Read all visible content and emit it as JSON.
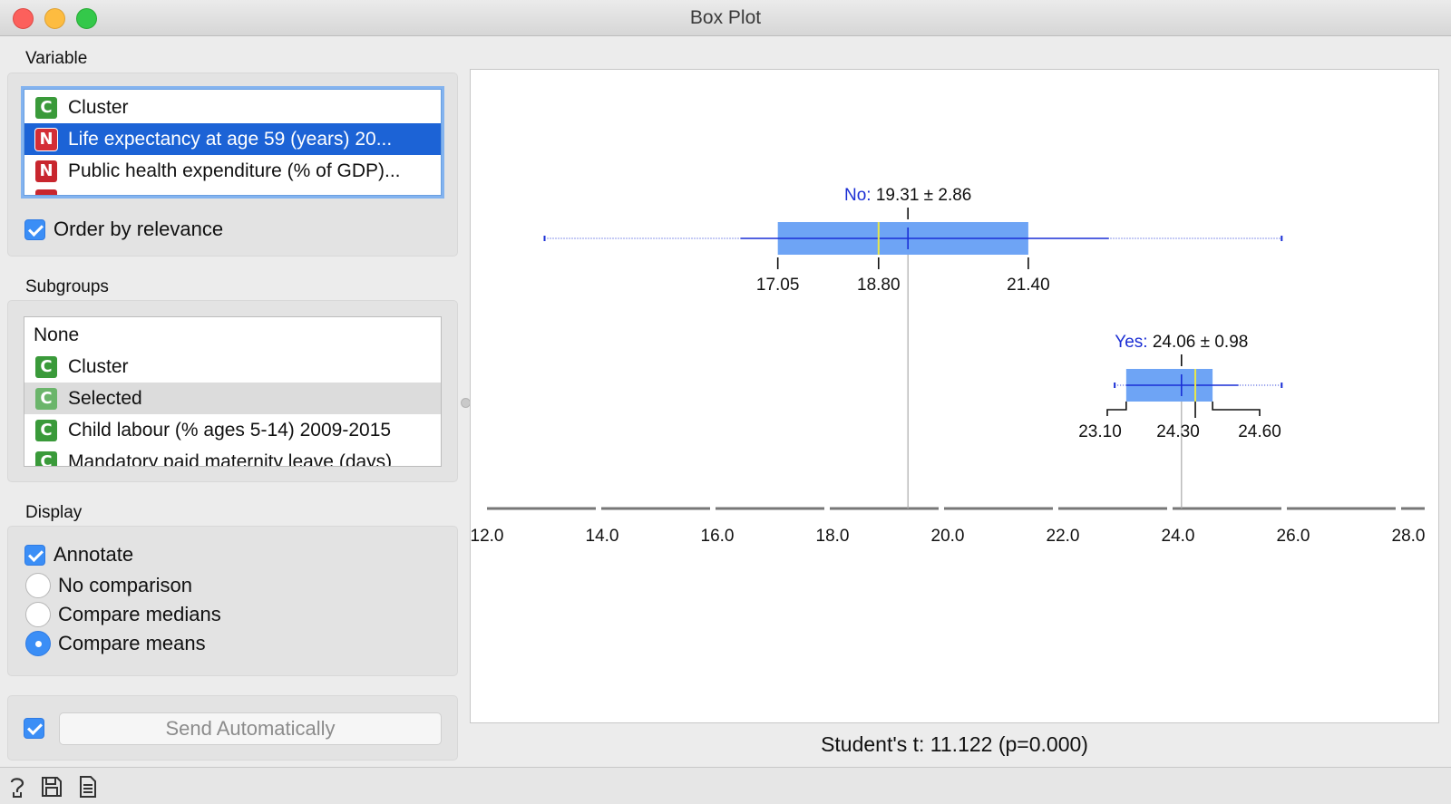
{
  "window": {
    "title": "Box Plot"
  },
  "variable": {
    "label": "Variable",
    "items": [
      {
        "badge": "C",
        "label": "Cluster"
      },
      {
        "badge": "N",
        "label": "Life expectancy at age 59 (years) 20..."
      },
      {
        "badge": "N",
        "label": "Public health expenditure (% of GDP)..."
      }
    ],
    "order_by_relevance": "Order by relevance"
  },
  "subgroups": {
    "label": "Subgroups",
    "items": [
      {
        "badge": "",
        "label": "None"
      },
      {
        "badge": "C",
        "label": "Cluster"
      },
      {
        "badge": "C",
        "label": "Selected"
      },
      {
        "badge": "C",
        "label": "Child labour  (% ages 5-14) 2009-2015"
      },
      {
        "badge": "C",
        "label": "Mandatory paid maternity leave (days)"
      }
    ]
  },
  "display": {
    "label": "Display",
    "annotate": "Annotate",
    "no_comparison": "No comparison",
    "compare_medians": "Compare medians",
    "compare_means": "Compare means"
  },
  "send": {
    "label": "Send Automatically"
  },
  "stat": {
    "text": "Student's t: 11.122 (p=0.000)"
  },
  "colors": {
    "box_fill": "#6ea4f5",
    "whisker": "#1a2fd6",
    "median": "#e8e84a",
    "group_label": "#1c2fd4",
    "accent": "#3b8ef6"
  },
  "icons": {
    "help": "help-icon",
    "save": "save-icon",
    "report": "report-icon"
  },
  "chart_data": {
    "type": "boxplot",
    "x_ticks": [
      "12.0",
      "14.0",
      "16.0",
      "18.0",
      "20.0",
      "22.0",
      "24.0",
      "26.0",
      "28.0"
    ],
    "xlim": [
      12,
      28
    ],
    "groups": [
      {
        "name": "No:",
        "summary": "19.31 ± 2.86",
        "mean": 19.31,
        "q1": 17.05,
        "median": 18.8,
        "q3": 21.4,
        "whisker_low": 16.4,
        "whisker_high": 22.8,
        "min": 13.0,
        "max": 25.8,
        "labels": {
          "q1": "17.05",
          "median": "18.80",
          "q3": "21.40"
        }
      },
      {
        "name": "Yes:",
        "summary": "24.06 ± 0.98",
        "mean": 24.06,
        "q1": 23.1,
        "median": 24.3,
        "q3": 24.6,
        "whisker_low": 23.1,
        "whisker_high": 25.05,
        "min": 22.9,
        "max": 25.8,
        "labels": {
          "q1": "23.10",
          "median": "24.30",
          "q3": "24.60"
        }
      }
    ]
  }
}
